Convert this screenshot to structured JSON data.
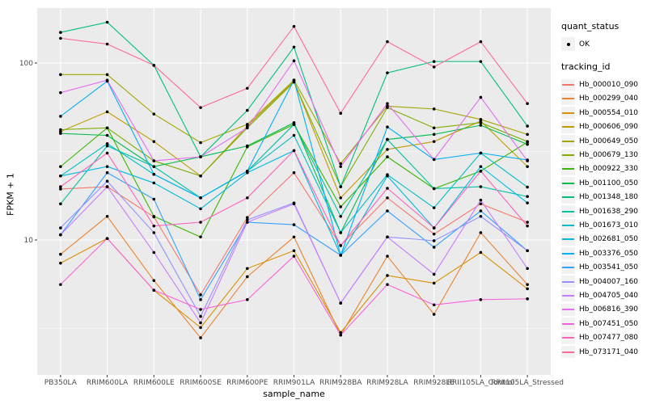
{
  "legend": {
    "quant_status_title": "quant_status",
    "quant_status_items": [
      {
        "label": "OK",
        "symbol": "black-point"
      }
    ],
    "tracking_id_title": "tracking_id"
  },
  "chart_data": {
    "type": "line",
    "title": "",
    "xlabel": "sample_name",
    "ylabel": "FPKM + 1",
    "yscale": "log10",
    "ylim": [
      1.7,
      205
    ],
    "y_tick_values": [
      100,
      10
    ],
    "y_minor_gridlines": [
      31.62,
      3.162
    ],
    "grid": true,
    "legend_position": "right",
    "panel_color": "#EBEBEB",
    "gridline_color": "#FFFFFF",
    "point_color": "#000000",
    "axis_text_color": "#4D4D4D",
    "categories": [
      "PB350LA",
      "RRIM600LA",
      "RRIM600LE",
      "RRIM600SE",
      "RRIM600PE",
      "RRIM901LA",
      "RRIM928BA",
      "RRIM928LA",
      "RRIM928LE",
      "RRII105LA_Control",
      "RRII105LA_Stressed"
    ],
    "series": [
      {
        "name": "Hb_000010_090",
        "color": "#F8766D",
        "values": [
          19.4,
          20,
          13.5,
          4.9,
          13.4,
          24,
          9.3,
          17.3,
          10.8,
          16,
          12.6
        ]
      },
      {
        "name": "Hb_000299_040",
        "color": "#EA8331",
        "values": [
          8.3,
          13.6,
          5.9,
          2.8,
          6.2,
          10.4,
          2.9,
          8.1,
          3.8,
          11,
          5.6
        ]
      },
      {
        "name": "Hb_000554_010",
        "color": "#D89000",
        "values": [
          7.4,
          10.2,
          5.2,
          3.2,
          6.9,
          8.7,
          3.0,
          6.3,
          5.7,
          8.5,
          5.3
        ]
      },
      {
        "name": "Hb_000606_090",
        "color": "#C09B00",
        "values": [
          41,
          53,
          36,
          23,
          44,
          79,
          17.3,
          32.5,
          36,
          47,
          26
        ]
      },
      {
        "name": "Hb_000649_050",
        "color": "#A3A500",
        "values": [
          86,
          86,
          51.5,
          35.5,
          45,
          80,
          27,
          57,
          55,
          48,
          39.5
        ]
      },
      {
        "name": "Hb_000679_130",
        "color": "#7CAE00",
        "values": [
          42,
          43,
          28,
          23,
          43,
          78,
          20,
          56,
          43,
          46,
          36
        ]
      },
      {
        "name": "Hb_000922_330",
        "color": "#39B600",
        "values": [
          26,
          43,
          13.6,
          10.4,
          33.6,
          45,
          15.4,
          29.5,
          19.5,
          24.5,
          35.7
        ]
      },
      {
        "name": "Hb_001100_050",
        "color": "#00BB4E",
        "values": [
          40,
          39,
          26,
          29.5,
          34,
          46,
          11,
          37,
          39.5,
          44.5,
          34.7
        ]
      },
      {
        "name": "Hb_001348_180",
        "color": "#00BF7D",
        "values": [
          149,
          170,
          97,
          29.5,
          54,
          123,
          20,
          88,
          102,
          102,
          44
        ]
      },
      {
        "name": "Hb_001638_290",
        "color": "#00C1A3",
        "values": [
          16,
          34,
          26,
          17.3,
          24.5,
          45,
          13.6,
          37,
          19.5,
          20,
          17.6
        ]
      },
      {
        "name": "Hb_001673_010",
        "color": "#00BFC4",
        "values": [
          23,
          35,
          23.5,
          17.3,
          24.5,
          39,
          11,
          23.4,
          15.2,
          31,
          19.9
        ]
      },
      {
        "name": "Hb_002681_050",
        "color": "#00BAE0",
        "values": [
          23,
          26,
          21,
          15,
          24,
          32,
          8.2,
          23,
          11.7,
          26,
          16.2
        ]
      },
      {
        "name": "Hb_003376_050",
        "color": "#00B0F6",
        "values": [
          50,
          79,
          23.5,
          17.3,
          24.5,
          80,
          8.2,
          43.5,
          28.5,
          31,
          28.3
        ]
      },
      {
        "name": "Hb_003541_050",
        "color": "#35A2FF",
        "values": [
          10.7,
          24,
          17,
          4.6,
          12.6,
          12.2,
          8.2,
          14.6,
          9.1,
          14.6,
          8.7
        ]
      },
      {
        "name": "Hb_004007_160",
        "color": "#9590FF",
        "values": [
          11.7,
          21.5,
          11,
          3.7,
          13,
          16.2,
          4.4,
          10.4,
          9.9,
          13.6,
          8.7
        ]
      },
      {
        "name": "Hb_004705_040",
        "color": "#C77CFF",
        "values": [
          10.7,
          20,
          8.5,
          3.4,
          12.6,
          16,
          4.4,
          10.4,
          6.4,
          16.8,
          6.9
        ]
      },
      {
        "name": "Hb_006816_390",
        "color": "#E76BF3",
        "values": [
          68,
          80,
          28,
          29.5,
          43,
          103,
          26,
          59,
          28.5,
          64,
          28
        ]
      },
      {
        "name": "Hb_007451_050",
        "color": "#FA62DB",
        "values": [
          5.6,
          10.2,
          5.2,
          4.05,
          4.6,
          8.1,
          2.9,
          5.6,
          4.3,
          4.6,
          4.65
        ]
      },
      {
        "name": "Hb_007477_080",
        "color": "#FF62BC",
        "values": [
          20,
          31,
          12,
          12.6,
          17.3,
          32,
          9.3,
          19.6,
          11.7,
          24.5,
          12
        ]
      },
      {
        "name": "Hb_073171_040",
        "color": "#FF6A98",
        "values": [
          138,
          128,
          97,
          56,
          72,
          161,
          52,
          132,
          95,
          132,
          59
        ]
      }
    ]
  }
}
